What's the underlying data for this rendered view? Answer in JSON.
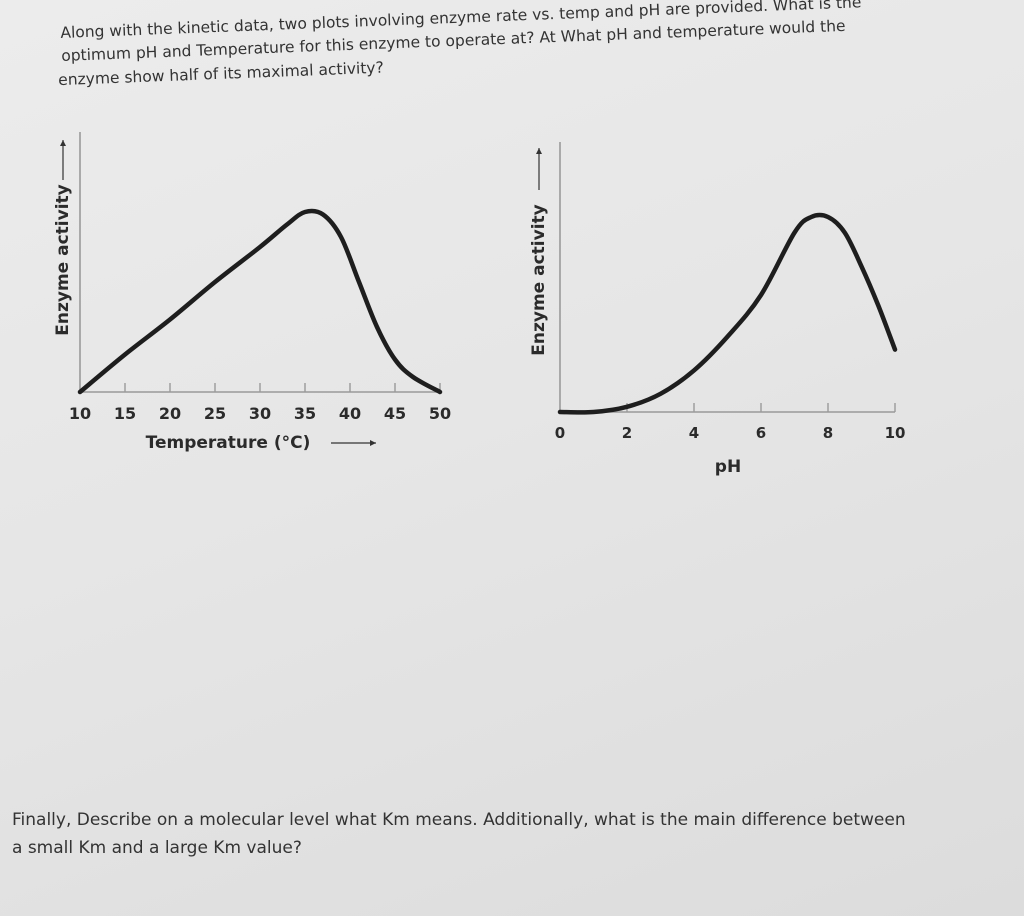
{
  "question": {
    "lines": [
      "Along with the kinetic data, two plots involving enzyme rate vs. temp and pH are provided. What is the",
      "optimum pH and Temperature for this enzyme to operate at? At What pH and temperature would the",
      "enzyme show half of its maximal activity?"
    ]
  },
  "chart_data": [
    {
      "type": "line",
      "xlabel": "Temperature (°C)",
      "ylabel": "Enzyme activity",
      "xlim": [
        10,
        50
      ],
      "ylim": [
        0,
        1
      ],
      "ticks": [
        10,
        15,
        20,
        25,
        30,
        35,
        40,
        45,
        50
      ],
      "tick_labels": [
        "10",
        "15",
        "20",
        "25",
        "30",
        "35",
        "40",
        "45",
        "50"
      ],
      "x": [
        10,
        15,
        20,
        25,
        30,
        33,
        35,
        37,
        39,
        41,
        43,
        45,
        47,
        50
      ],
      "y": [
        0.0,
        0.15,
        0.29,
        0.44,
        0.58,
        0.67,
        0.72,
        0.71,
        0.62,
        0.44,
        0.26,
        0.13,
        0.06,
        0.0
      ],
      "axis_color": "#9a9a9a",
      "line_color": "#1e1e1e"
    },
    {
      "type": "line",
      "xlabel": "pH",
      "ylabel": "Enzyme activity",
      "xlim": [
        0,
        10
      ],
      "ylim": [
        0,
        1
      ],
      "ticks": [
        0,
        2,
        4,
        6,
        8,
        10
      ],
      "tick_labels": [
        "0",
        "2",
        "4",
        "6",
        "8",
        "10"
      ],
      "x": [
        0,
        1,
        2,
        3,
        4,
        5,
        6,
        7,
        7.5,
        8,
        8.5,
        9,
        9.5,
        10
      ],
      "y": [
        0.0,
        0.0,
        0.02,
        0.07,
        0.16,
        0.29,
        0.45,
        0.69,
        0.75,
        0.75,
        0.69,
        0.56,
        0.41,
        0.24
      ],
      "axis_color": "#9a9a9a",
      "line_color": "#1e1e1e"
    }
  ],
  "footer": {
    "lines": [
      "Finally, Describe on a molecular level what Km means. Additionally, what is the main difference between",
      "a small Km and a large Km value?"
    ]
  }
}
